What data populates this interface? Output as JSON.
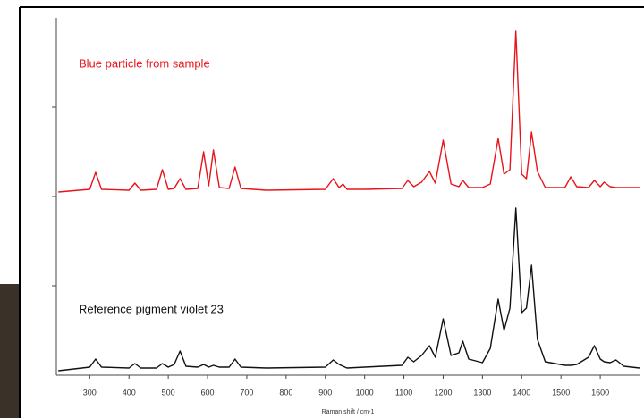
{
  "chart_data": {
    "type": "line",
    "x_label": "Raman shift / cm-1",
    "annotations": [
      "Blue particle from sample",
      "Reference pigment violet 23"
    ],
    "x": [
      220,
      300,
      315,
      330,
      400,
      415,
      430,
      470,
      485,
      500,
      515,
      530,
      545,
      575,
      590,
      603,
      615,
      630,
      655,
      670,
      685,
      750,
      900,
      920,
      935,
      945,
      955,
      1000,
      1095,
      1110,
      1125,
      1145,
      1165,
      1180,
      1200,
      1220,
      1240,
      1250,
      1265,
      1300,
      1320,
      1340,
      1355,
      1370,
      1385,
      1400,
      1412,
      1425,
      1440,
      1460,
      1510,
      1525,
      1540,
      1570,
      1585,
      1600,
      1610,
      1625,
      1640,
      1660,
      1700
    ],
    "series": [
      {
        "name": "Blue particle from sample",
        "color": "#e8141c",
        "values": [
          2.05,
          2.08,
          2.27,
          2.08,
          2.07,
          2.15,
          2.07,
          2.08,
          2.3,
          2.08,
          2.09,
          2.2,
          2.08,
          2.09,
          2.5,
          2.12,
          2.52,
          2.1,
          2.09,
          2.33,
          2.09,
          2.07,
          2.08,
          2.2,
          2.1,
          2.14,
          2.08,
          2.08,
          2.09,
          2.18,
          2.11,
          2.16,
          2.28,
          2.15,
          2.63,
          2.14,
          2.11,
          2.18,
          2.1,
          2.1,
          2.14,
          2.65,
          2.25,
          2.3,
          3.85,
          2.25,
          2.2,
          2.72,
          2.28,
          2.1,
          2.1,
          2.22,
          2.11,
          2.1,
          2.18,
          2.11,
          2.16,
          2.11,
          2.1,
          2.1,
          2.1
        ]
      },
      {
        "name": "Reference pigment violet 23",
        "color": "#111111",
        "values": [
          0.05,
          0.09,
          0.18,
          0.09,
          0.08,
          0.13,
          0.08,
          0.08,
          0.13,
          0.09,
          0.12,
          0.27,
          0.1,
          0.09,
          0.12,
          0.09,
          0.11,
          0.09,
          0.09,
          0.18,
          0.09,
          0.08,
          0.09,
          0.17,
          0.12,
          0.1,
          0.08,
          0.09,
          0.11,
          0.2,
          0.15,
          0.22,
          0.33,
          0.2,
          0.63,
          0.22,
          0.25,
          0.38,
          0.18,
          0.14,
          0.3,
          0.85,
          0.5,
          0.75,
          1.87,
          0.7,
          0.75,
          1.23,
          0.4,
          0.15,
          0.11,
          0.11,
          0.12,
          0.2,
          0.33,
          0.18,
          0.15,
          0.14,
          0.17,
          0.1,
          0.08
        ]
      }
    ],
    "xlim": [
      215,
      1700
    ],
    "xticks": [
      300,
      400,
      500,
      600,
      700,
      800,
      900,
      1000,
      1100,
      1200,
      1300,
      1400,
      1500,
      1600
    ],
    "ylim": [
      0,
      4
    ],
    "yticks": [
      1,
      2,
      3
    ]
  }
}
